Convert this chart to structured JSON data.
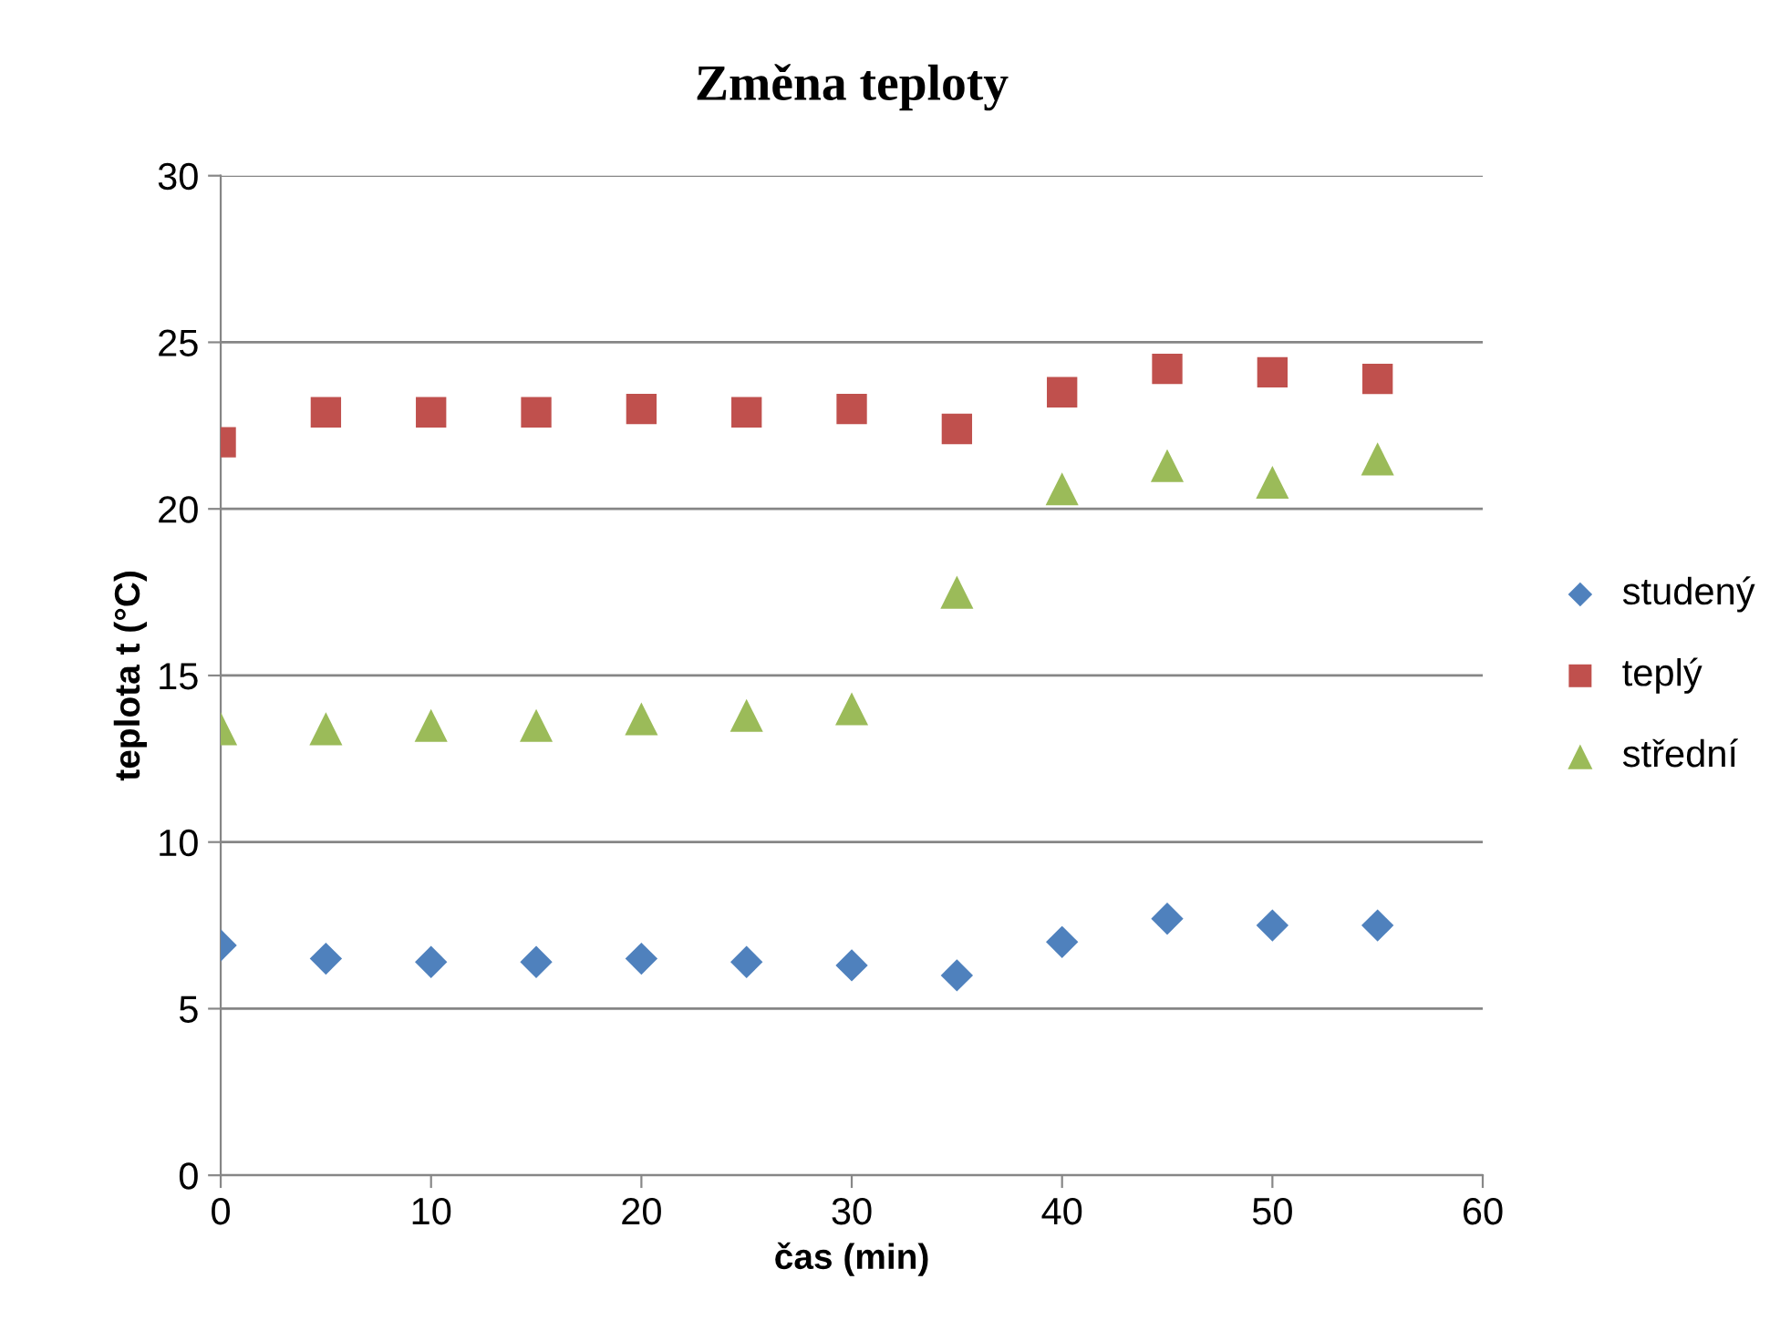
{
  "chart_data": {
    "type": "scatter",
    "title": "Změna teploty",
    "xlabel": "čas (min)",
    "ylabel": "teplota t (°C)",
    "x": [
      0,
      5,
      10,
      15,
      20,
      25,
      30,
      35,
      40,
      45,
      50,
      55
    ],
    "series": [
      {
        "name": "studený",
        "color": "#4f81bd",
        "marker": "diamond",
        "values": [
          6.9,
          6.5,
          6.4,
          6.4,
          6.5,
          6.4,
          6.3,
          6.0,
          7.0,
          7.7,
          7.5,
          7.5
        ]
      },
      {
        "name": "teplý",
        "color": "#c0504d",
        "marker": "square",
        "values": [
          22.0,
          22.9,
          22.9,
          22.9,
          23.0,
          22.9,
          23.0,
          22.4,
          23.5,
          24.2,
          24.1,
          23.9
        ]
      },
      {
        "name": "střední",
        "color": "#9bbb59",
        "marker": "triangle",
        "values": [
          13.4,
          13.4,
          13.5,
          13.5,
          13.7,
          13.8,
          14.0,
          17.5,
          20.6,
          21.3,
          20.8,
          21.5
        ]
      }
    ],
    "xlim": [
      0,
      60
    ],
    "xticks": [
      0,
      10,
      20,
      30,
      40,
      50,
      60
    ],
    "ylim": [
      0,
      30
    ],
    "yticks": [
      0,
      5,
      10,
      15,
      20,
      25,
      30
    ],
    "grid": "y",
    "legend": "right"
  }
}
